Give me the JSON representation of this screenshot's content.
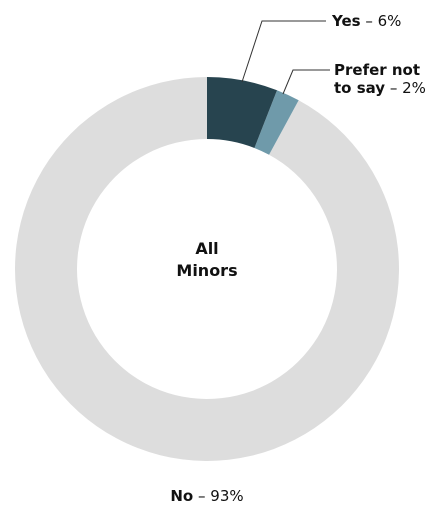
{
  "chart_data": {
    "type": "donut",
    "title": "All Minors",
    "categories": [
      "Yes",
      "Prefer not to say",
      "No"
    ],
    "values": [
      6,
      2,
      93
    ],
    "value_labels": [
      "– 6%",
      "– 2%",
      "– 93%"
    ],
    "colors": [
      "#27444f",
      "#6f9aaa",
      "#dddddd"
    ]
  }
}
